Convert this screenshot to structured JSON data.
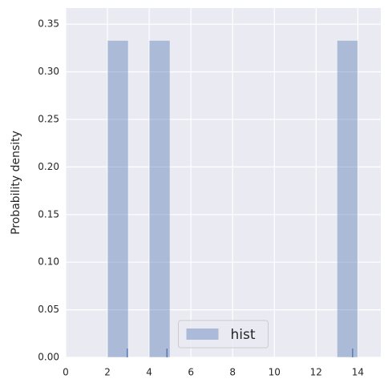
{
  "chart_data": {
    "type": "histogram",
    "ylabel": "Probability density",
    "bins": [
      2,
      3,
      4,
      5,
      6,
      7,
      8,
      9,
      10,
      11,
      12,
      13,
      14
    ],
    "values": [
      0.333,
      0,
      0.333,
      0,
      0,
      0,
      0,
      0,
      0,
      0,
      0,
      0.333
    ],
    "rug": [
      2.95,
      4.85,
      13.75
    ],
    "series_name": "hist",
    "color": "#4c72b0",
    "xlim": [
      0,
      15.1
    ],
    "ylim": [
      0,
      0.367
    ],
    "xticks": [
      0,
      2,
      4,
      6,
      8,
      10,
      12,
      14
    ],
    "yticks": [
      {
        "value": 0,
        "label": "0.00"
      },
      {
        "value": 0.05,
        "label": "0.05"
      },
      {
        "value": 0.1,
        "label": "0.10"
      },
      {
        "value": 0.15,
        "label": "0.15"
      },
      {
        "value": 0.2,
        "label": "0.20"
      },
      {
        "value": 0.25,
        "label": "0.25"
      },
      {
        "value": 0.3,
        "label": "0.30"
      },
      {
        "value": 0.35,
        "label": "0.35"
      }
    ],
    "grid": true,
    "legend": "lower center"
  }
}
